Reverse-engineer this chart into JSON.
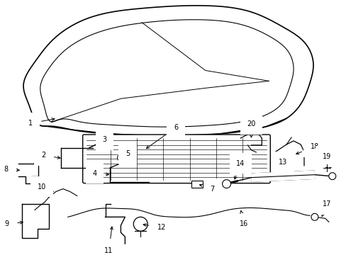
{
  "bg_color": "#ffffff",
  "line_color": "#000000",
  "figsize": [
    4.89,
    3.6
  ],
  "dpi": 100,
  "label_fontsize": 7.0
}
